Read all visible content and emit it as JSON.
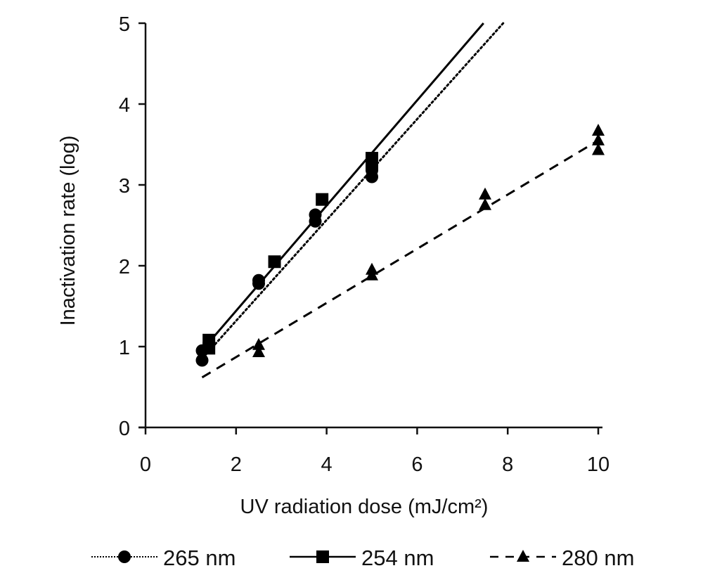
{
  "chart_data": {
    "type": "scatter",
    "title": "",
    "xlabel": "UV radiation dose (mJ/cm²)",
    "ylabel": "Inactivation rate (log)",
    "xlim": [
      0,
      10
    ],
    "ylim": [
      0,
      5
    ],
    "xticks": [
      "0",
      "2",
      "4",
      "6",
      "8",
      "10"
    ],
    "yticks": [
      "0",
      "1",
      "2",
      "3",
      "4",
      "5"
    ],
    "grid": false,
    "legend_position": "bottom",
    "series": [
      {
        "name": "265 nm",
        "marker": "circle",
        "line_style": "dotted",
        "color": "#000000",
        "points": [
          [
            1.25,
            0.83
          ],
          [
            1.25,
            0.95
          ],
          [
            2.5,
            1.78
          ],
          [
            2.5,
            1.82
          ],
          [
            3.75,
            2.55
          ],
          [
            3.75,
            2.63
          ],
          [
            5,
            3.1
          ],
          [
            5,
            3.18
          ],
          [
            5,
            3.25
          ]
        ],
        "trendline": {
          "slope": 0.624,
          "intercept": 0.07,
          "x_start": 1.2
        }
      },
      {
        "name": "254 nm",
        "marker": "square",
        "line_style": "solid",
        "color": "#000000",
        "points": [
          [
            1.4,
            0.98
          ],
          [
            1.4,
            1.08
          ],
          [
            2.85,
            2.05
          ],
          [
            3.9,
            2.82
          ],
          [
            5,
            3.25
          ],
          [
            5,
            3.33
          ]
        ],
        "trendline": {
          "slope": 0.651,
          "intercept": 0.14,
          "x_start": 1.4
        }
      },
      {
        "name": "280 nm",
        "marker": "triangle",
        "line_style": "dashed",
        "color": "#000000",
        "points": [
          [
            2.5,
            0.93
          ],
          [
            2.5,
            1.02
          ],
          [
            5,
            1.88
          ],
          [
            5,
            1.95
          ],
          [
            7.5,
            2.75
          ],
          [
            7.5,
            2.88
          ],
          [
            10,
            3.43
          ],
          [
            10,
            3.55
          ],
          [
            10,
            3.67
          ]
        ],
        "trendline": {
          "slope": 0.335,
          "intercept": 0.2,
          "x_start": 1.25
        }
      }
    ]
  }
}
